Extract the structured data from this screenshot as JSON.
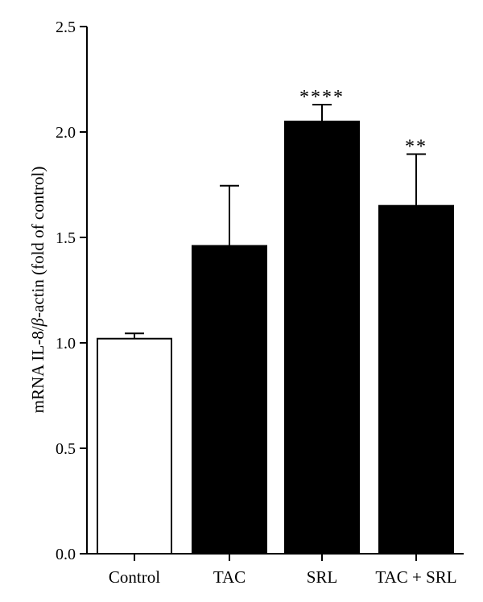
{
  "chart_data": {
    "type": "bar",
    "title": "",
    "xlabel": "",
    "ylabel_prefix": "mRNA IL-8/",
    "ylabel_beta": "β",
    "ylabel_suffix": "-actin (fold of control)",
    "ylim": [
      0,
      2.5
    ],
    "yticks": [
      "0.0",
      "0.5",
      "1.0",
      "1.5",
      "2.0",
      "2.5"
    ],
    "yticks_values": [
      0,
      0.5,
      1.0,
      1.5,
      2.0,
      2.5
    ],
    "categories": [
      "Control",
      "TAC",
      "SRL",
      "TAC + SRL"
    ],
    "values": [
      1.02,
      1.46,
      2.05,
      1.65
    ],
    "errors": [
      0.025,
      0.285,
      0.08,
      0.245
    ],
    "significance": [
      "",
      "",
      "****",
      "**"
    ],
    "colors": {
      "control_fill": "#ffffff",
      "treatment_fill": "#000000",
      "axis": "#000000"
    }
  }
}
